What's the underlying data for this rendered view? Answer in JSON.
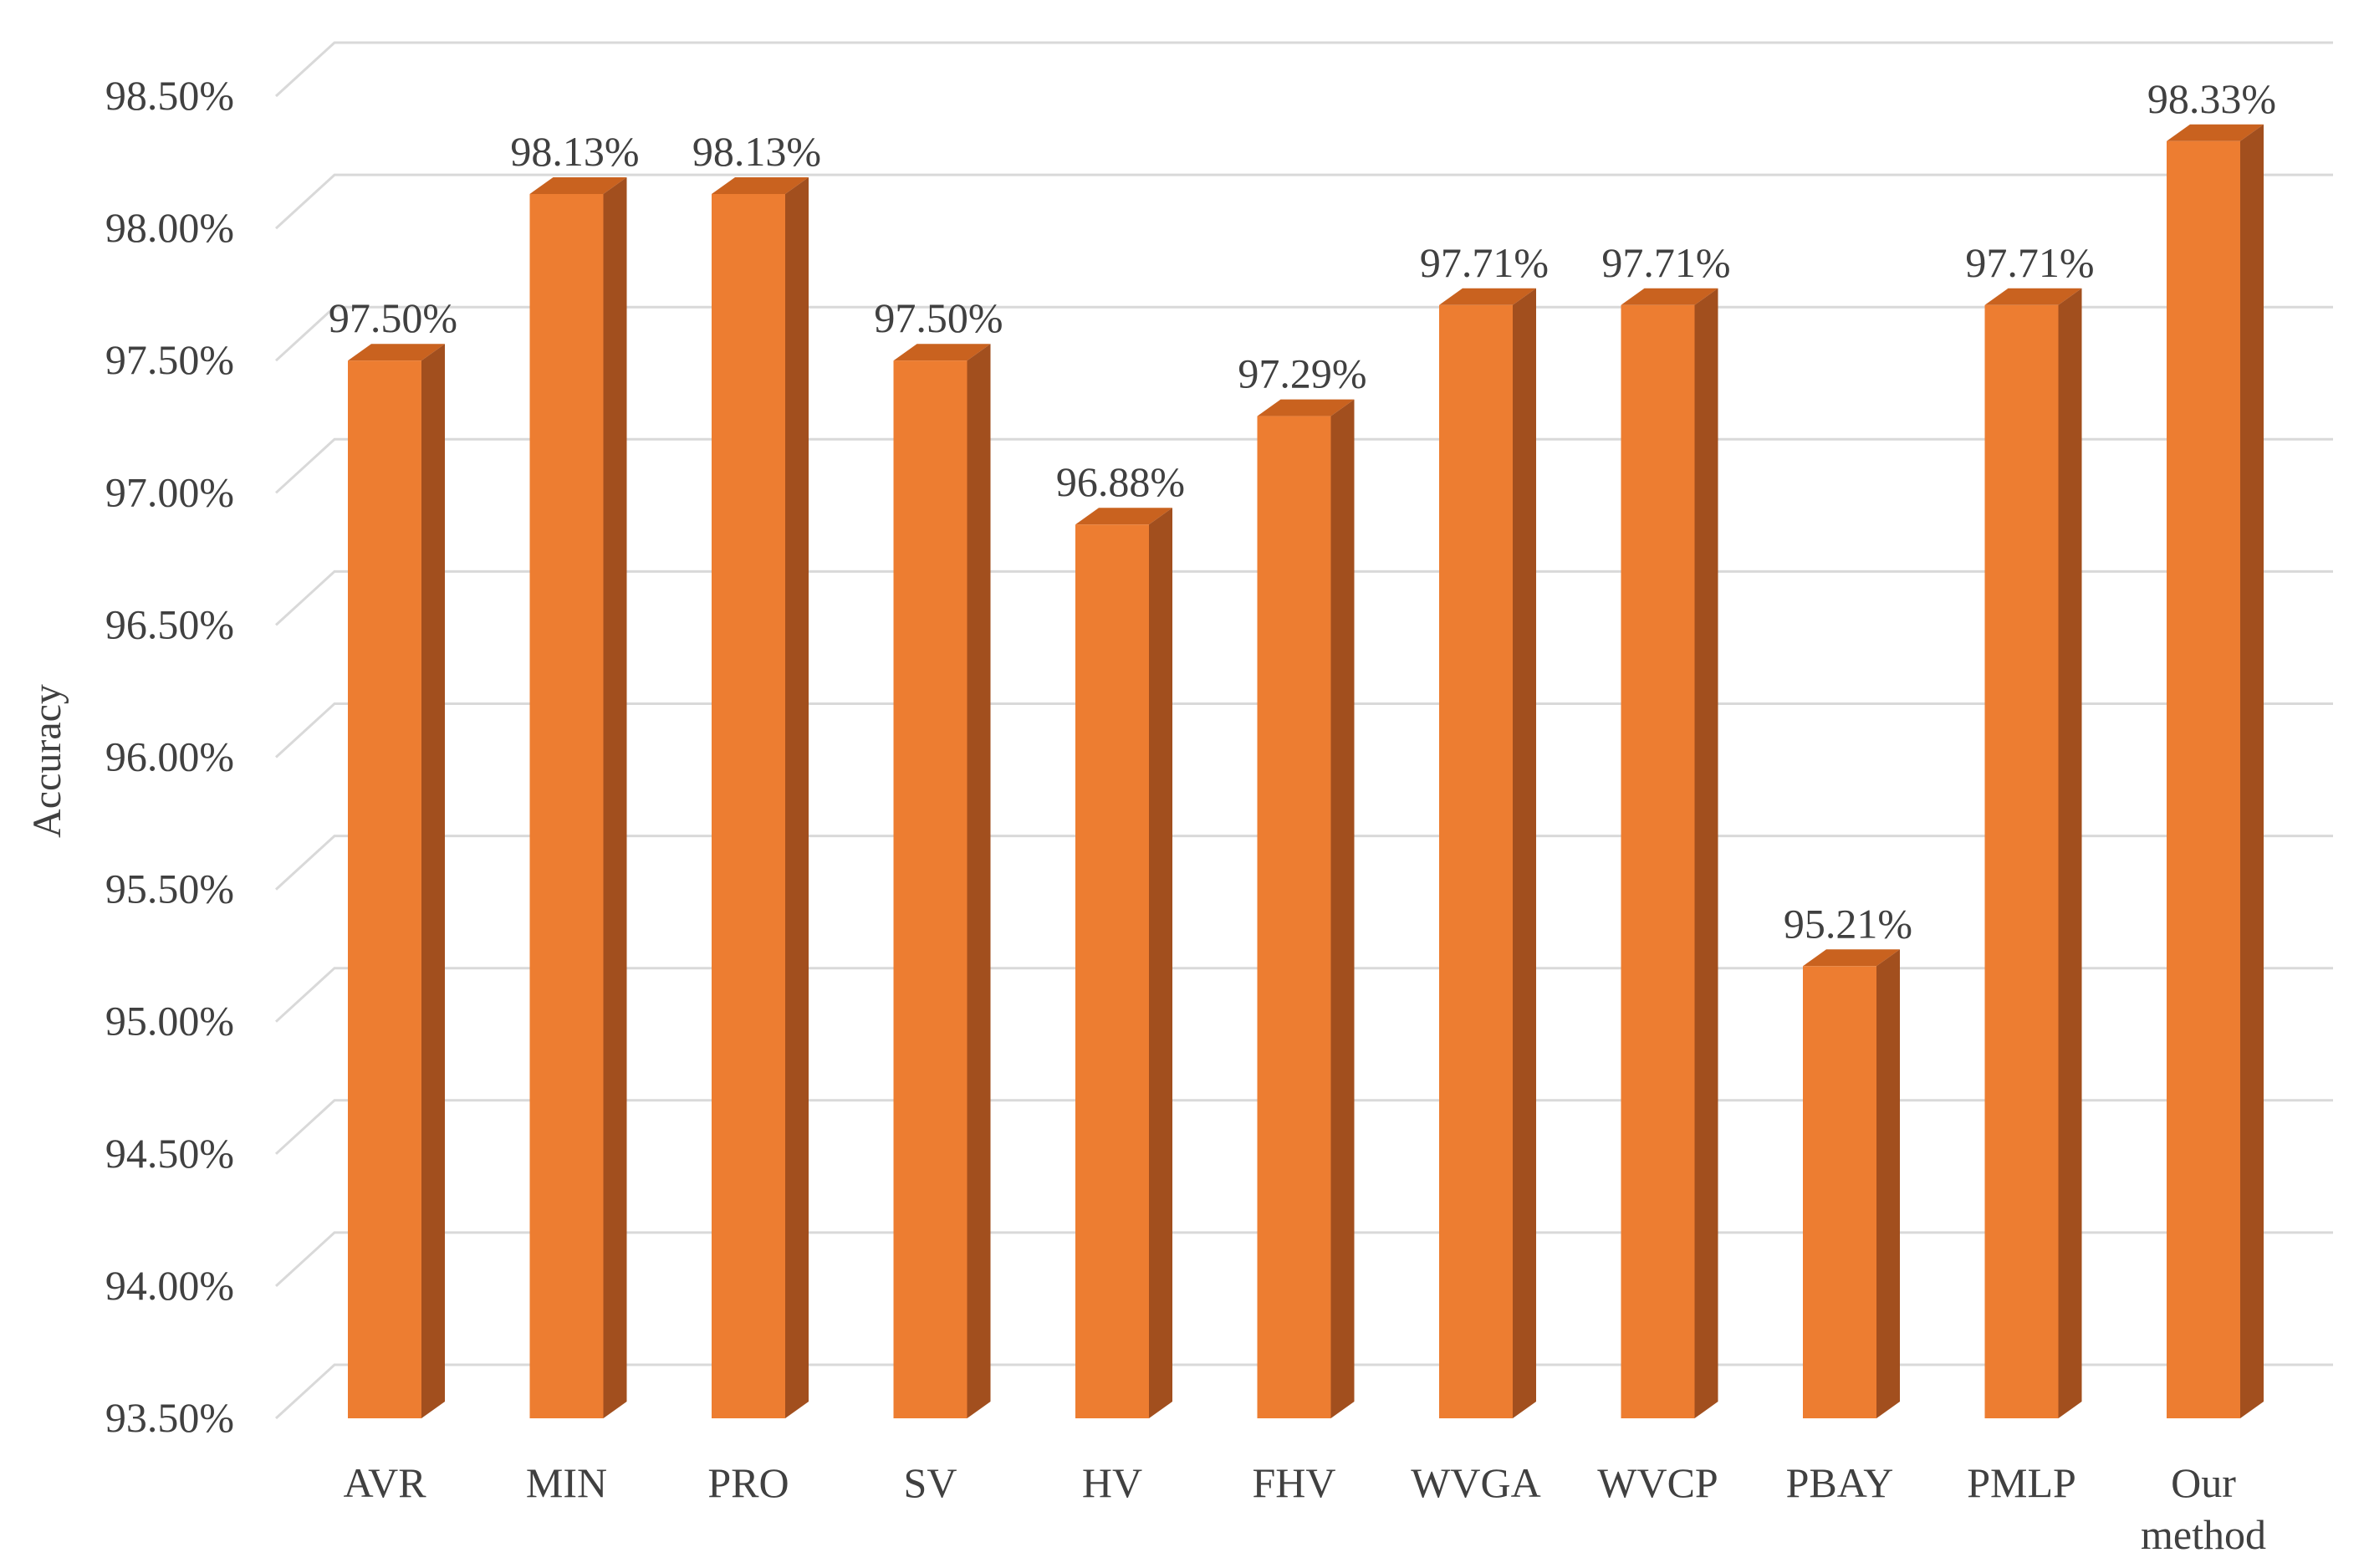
{
  "chart_data": {
    "type": "bar",
    "title": "",
    "xlabel": "",
    "ylabel": "Accuracy",
    "ylim": [
      93.5,
      98.5
    ],
    "ytick_step": 0.5,
    "yticks": [
      "93.50%",
      "94.00%",
      "94.50%",
      "95.00%",
      "95.50%",
      "96.00%",
      "96.50%",
      "97.00%",
      "97.50%",
      "98.00%",
      "98.50%"
    ],
    "grid": true,
    "legend": "none",
    "categories": [
      [
        "AVR"
      ],
      [
        "MIN"
      ],
      [
        "PRO"
      ],
      [
        "SV"
      ],
      [
        "HV"
      ],
      [
        "FHV"
      ],
      [
        "WVGA"
      ],
      [
        "WVCP"
      ],
      [
        "PBAY"
      ],
      [
        "PMLP"
      ],
      [
        "Our",
        "method"
      ]
    ],
    "values": [
      97.5,
      98.13,
      98.13,
      97.5,
      96.88,
      97.29,
      97.71,
      97.71,
      95.21,
      97.71,
      98.33
    ],
    "data_labels": [
      "97.50%",
      "98.13%",
      "98.13%",
      "97.50%",
      "96.88%",
      "97.29%",
      "97.71%",
      "97.71%",
      "95.21%",
      "97.71%",
      "98.33%"
    ],
    "colors": {
      "bar_front": "#ED7D31",
      "bar_side": "#A24F1E",
      "bar_top": "#C9621F",
      "grid": "#D9D9D9",
      "text": "#404040"
    }
  }
}
